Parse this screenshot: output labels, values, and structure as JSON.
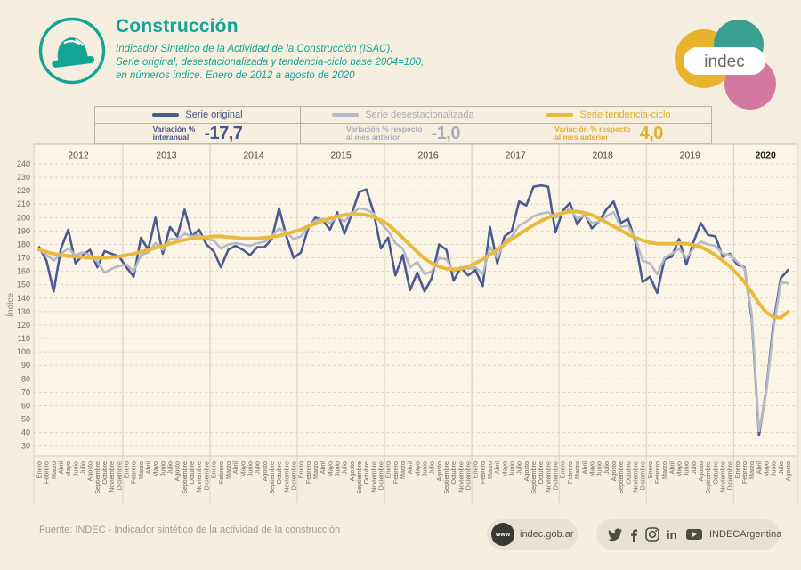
{
  "header": {
    "title": "Construcción",
    "subtitle_lines": [
      "Indicador Sintético de la Actividad de la Construcción (ISAC).",
      "Serie original, desestacionalizada y tendencia-ciclo base 2004=100,",
      "en números índice. Enero de 2012 a agosto de 2020"
    ],
    "accent_color": "#13a496"
  },
  "logo": {
    "text": "indec",
    "circle_colors": {
      "yellow": "#e9b32e",
      "teal": "#3ba093",
      "pink": "#d3799f"
    },
    "text_color": "#6d6a62"
  },
  "legend": {
    "columns": [
      {
        "series_label": "Serie original",
        "metric_label_lines": [
          "Variación %",
          "interanual"
        ],
        "value": "-17,7",
        "color": "#4b5a91",
        "text_color": "#46548a"
      },
      {
        "series_label": "Serie desestacionalizada",
        "metric_label_lines": [
          "Variación % respecto",
          "al mes anterior"
        ],
        "value": "-1,0",
        "color": "#b6b9c7",
        "text_color": "#a9adbb"
      },
      {
        "series_label": "Serie tendencia-ciclo",
        "metric_label_lines": [
          "Variación % respecto",
          "al mes anterior"
        ],
        "value": "4,0",
        "color": "#eaba3f",
        "text_color": "#e2ae2e"
      }
    ]
  },
  "chart_data": {
    "type": "line",
    "ylabel": "Índice",
    "ylim": [
      30,
      240
    ],
    "ytick_step": 10,
    "grid": true,
    "plot_bg": "#fbf5e7",
    "month_names": [
      "Enero",
      "Febrero",
      "Marzo",
      "Abril",
      "Mayo",
      "Junio",
      "Julio",
      "Agosto",
      "Septiembre",
      "Octubre",
      "Noviembre",
      "Diciembre"
    ],
    "years": [
      {
        "label": "2012",
        "months": 12,
        "bold": false
      },
      {
        "label": "2013",
        "months": 12,
        "bold": false
      },
      {
        "label": "2014",
        "months": 12,
        "bold": false
      },
      {
        "label": "2015",
        "months": 12,
        "bold": false
      },
      {
        "label": "2016",
        "months": 12,
        "bold": false
      },
      {
        "label": "2017",
        "months": 12,
        "bold": false
      },
      {
        "label": "2018",
        "months": 12,
        "bold": false
      },
      {
        "label": "2019",
        "months": 12,
        "bold": false
      },
      {
        "label": "2020",
        "months": 8,
        "bold": true
      }
    ],
    "series": [
      {
        "name": "Serie original",
        "color": "#4b5a91",
        "width": 2.6,
        "values": [
          178,
          168,
          145,
          177,
          191,
          166,
          172,
          176,
          163,
          175,
          173,
          171,
          163,
          156,
          185,
          176,
          200,
          173,
          193,
          186,
          206,
          186,
          191,
          180,
          175,
          163,
          176,
          179,
          176,
          172,
          178,
          178,
          184,
          207,
          186,
          170,
          174,
          192,
          200,
          198,
          191,
          204,
          188,
          203,
          219,
          221,
          204,
          177,
          185,
          157,
          172,
          146,
          159,
          145,
          155,
          180,
          176,
          153,
          163,
          157,
          161,
          149,
          193,
          166,
          186,
          190,
          212,
          209,
          223,
          224,
          223,
          189,
          205,
          211,
          195,
          203,
          192,
          197,
          206,
          212,
          196,
          199,
          182,
          152,
          156,
          144,
          169,
          171,
          184,
          165,
          182,
          196,
          187,
          186,
          171,
          173,
          165,
          163,
          125,
          38,
          72,
          122,
          155,
          161
        ]
      },
      {
        "name": "Serie desestacionalizada",
        "color": "#b6b9c7",
        "width": 2.6,
        "values": [
          176,
          172,
          168,
          173,
          177,
          172,
          174,
          172,
          167,
          159,
          162,
          164,
          165,
          160,
          172,
          174,
          181,
          176,
          184,
          184,
          188,
          186,
          187,
          184,
          183,
          177,
          180,
          181,
          180,
          179,
          181,
          182,
          186,
          192,
          189,
          184,
          186,
          193,
          198,
          199,
          196,
          201,
          197,
          203,
          207,
          206,
          203,
          196,
          190,
          181,
          177,
          163,
          167,
          158,
          160,
          170,
          169,
          160,
          163,
          162,
          163,
          158,
          178,
          170,
          182,
          186,
          194,
          197,
          201,
          203,
          204,
          200,
          203,
          207,
          199,
          202,
          196,
          197,
          201,
          204,
          193,
          194,
          184,
          168,
          166,
          158,
          170,
          173,
          177,
          170,
          177,
          182,
          180,
          179,
          173,
          172,
          167,
          162,
          128,
          41,
          70,
          118,
          152,
          151
        ]
      },
      {
        "name": "Serie tendencia-ciclo",
        "color": "#eaba3f",
        "width": 4,
        "values": [
          176,
          174.5,
          173,
          172,
          171.5,
          171,
          170.5,
          170,
          170,
          170,
          170.5,
          171,
          172,
          173,
          174.5,
          176,
          177.5,
          179,
          180.5,
          182,
          183.5,
          184.5,
          185,
          185.5,
          186,
          186,
          185.5,
          185,
          184.5,
          184.5,
          184.5,
          185,
          185.5,
          186.5,
          188,
          189.5,
          191,
          193.5,
          195.5,
          197.5,
          199.5,
          201,
          202,
          202.5,
          202.5,
          202,
          200.5,
          198,
          195,
          190,
          185,
          179.5,
          174.5,
          169.5,
          166,
          163.5,
          162,
          161.5,
          162,
          163.5,
          166,
          169,
          172.5,
          176,
          180,
          184,
          187.5,
          191,
          194.5,
          197.5,
          200,
          202,
          203.5,
          204.5,
          204.5,
          203.5,
          202,
          199.5,
          196.5,
          193.5,
          190.5,
          187.5,
          185,
          183,
          181.5,
          180.5,
          180.5,
          180.5,
          181,
          180.5,
          179.5,
          178,
          175.5,
          172,
          168,
          163.5,
          158,
          152,
          144.5,
          136,
          129.5,
          126,
          125.5,
          130
        ]
      }
    ]
  },
  "footer": {
    "source": "Fuente: INDEC - Indicador sintético de la actividad de la construcción",
    "www_label": "www",
    "website": "indec.gob.ar",
    "social_handle": "INDECArgentina"
  }
}
